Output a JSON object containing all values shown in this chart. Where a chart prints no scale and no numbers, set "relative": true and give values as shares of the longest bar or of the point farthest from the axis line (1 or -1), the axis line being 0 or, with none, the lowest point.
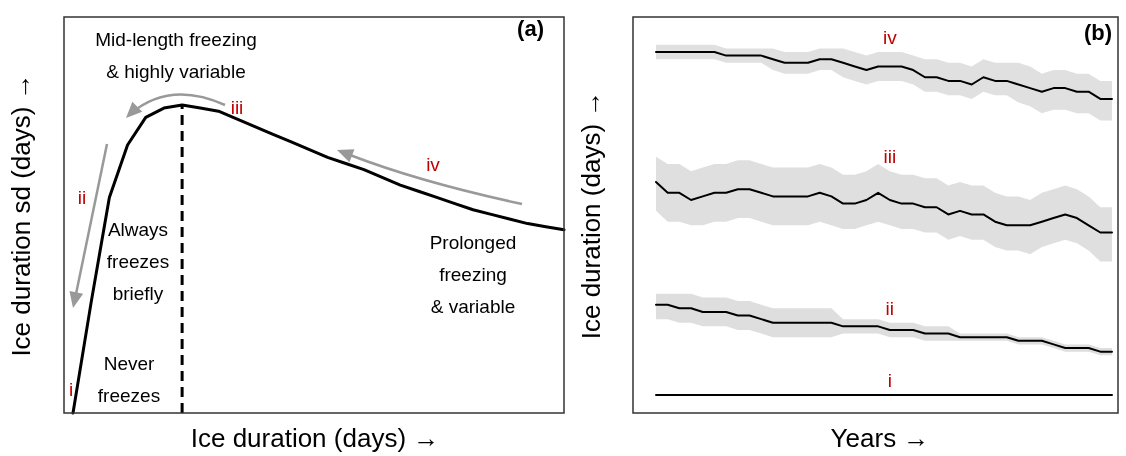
{
  "chart_data": [
    {
      "type": "line",
      "relative": true,
      "xlabel": "Ice duration (days) →",
      "ylabel": "Ice duration sd (days) →",
      "categories": [
        null,
        null,
        null,
        null,
        null,
        null,
        null,
        null,
        null,
        null,
        null,
        null,
        null,
        null,
        null,
        null,
        null,
        null,
        null,
        null,
        null,
        null,
        null,
        null,
        null,
        null,
        null,
        null
      ],
      "series": [
        {
          "color": "#000000",
          "values": [
            0,
            0.36,
            0.7,
            0.87,
            0.96,
            0.99,
            1.0,
            0.99,
            0.98,
            0.955,
            0.93,
            0.905,
            0.88,
            0.855,
            0.83,
            0.81,
            0.79,
            0.765,
            0.74,
            0.72,
            0.7,
            0.68,
            0.66,
            0.645,
            0.63,
            0.615,
            0.605,
            0.595
          ]
        }
      ],
      "annotations": [
        "(a)",
        "Mid-length freezing\n& highly variable",
        "Always\nfreezes\nbriefly",
        "Never\nfreezes",
        "Prolonged\nfreezing\n& variable",
        "i",
        "ii",
        "iii",
        "iv"
      ]
    },
    {
      "type": "line",
      "relative": true,
      "xlabel": "Years →",
      "ylabel": "Ice duration (days) →",
      "categories": [
        null,
        null,
        null,
        null,
        null,
        null,
        null,
        null,
        null,
        null,
        null,
        null,
        null,
        null,
        null,
        null,
        null,
        null,
        null,
        null,
        null,
        null,
        null,
        null,
        null,
        null,
        null,
        null,
        null,
        null,
        null,
        null,
        null,
        null,
        null,
        null,
        null,
        null,
        null,
        null
      ],
      "series": [
        {
          "name": "iv",
          "color": "#000000",
          "values": [
            1.0,
            1.0,
            1.0,
            1.0,
            1.0,
            1.0,
            0.99,
            0.99,
            0.99,
            0.99,
            0.98,
            0.97,
            0.97,
            0.97,
            0.98,
            0.98,
            0.97,
            0.96,
            0.95,
            0.96,
            0.96,
            0.96,
            0.95,
            0.93,
            0.93,
            0.92,
            0.92,
            0.91,
            0.93,
            0.92,
            0.92,
            0.91,
            0.9,
            0.89,
            0.9,
            0.9,
            0.89,
            0.89,
            0.87,
            0.87
          ],
          "upper": [
            1.02,
            1.02,
            1.02,
            1.02,
            1.02,
            1.02,
            1.01,
            1.01,
            1.01,
            1.01,
            1.01,
            1.0,
            1.0,
            1.0,
            1.01,
            1.01,
            1.01,
            1.0,
            0.99,
            1.0,
            1.0,
            1.0,
            0.99,
            0.98,
            0.98,
            0.97,
            0.97,
            0.96,
            0.98,
            0.97,
            0.97,
            0.97,
            0.96,
            0.94,
            0.95,
            0.95,
            0.94,
            0.94,
            0.92,
            0.92
          ],
          "lower": [
            0.98,
            0.98,
            0.98,
            0.98,
            0.98,
            0.98,
            0.97,
            0.97,
            0.97,
            0.97,
            0.95,
            0.94,
            0.94,
            0.94,
            0.95,
            0.95,
            0.93,
            0.92,
            0.91,
            0.92,
            0.92,
            0.92,
            0.91,
            0.89,
            0.89,
            0.88,
            0.88,
            0.87,
            0.89,
            0.88,
            0.88,
            0.86,
            0.85,
            0.83,
            0.84,
            0.84,
            0.83,
            0.83,
            0.81,
            0.81
          ]
        },
        {
          "name": "iii",
          "color": "#000000",
          "values": [
            0.64,
            0.61,
            0.61,
            0.59,
            0.6,
            0.61,
            0.61,
            0.62,
            0.62,
            0.61,
            0.6,
            0.6,
            0.6,
            0.6,
            0.61,
            0.6,
            0.58,
            0.58,
            0.59,
            0.61,
            0.59,
            0.58,
            0.58,
            0.57,
            0.57,
            0.55,
            0.56,
            0.55,
            0.55,
            0.53,
            0.52,
            0.52,
            0.52,
            0.53,
            0.54,
            0.55,
            0.54,
            0.52,
            0.5,
            0.5
          ],
          "upper": [
            0.71,
            0.69,
            0.69,
            0.67,
            0.68,
            0.69,
            0.69,
            0.7,
            0.7,
            0.69,
            0.68,
            0.68,
            0.68,
            0.68,
            0.69,
            0.68,
            0.66,
            0.66,
            0.67,
            0.69,
            0.67,
            0.66,
            0.66,
            0.65,
            0.65,
            0.63,
            0.64,
            0.63,
            0.63,
            0.61,
            0.6,
            0.6,
            0.59,
            0.61,
            0.62,
            0.63,
            0.62,
            0.6,
            0.57,
            0.57
          ],
          "lower": [
            0.56,
            0.53,
            0.53,
            0.52,
            0.52,
            0.53,
            0.53,
            0.54,
            0.54,
            0.53,
            0.52,
            0.52,
            0.52,
            0.52,
            0.53,
            0.52,
            0.51,
            0.51,
            0.52,
            0.53,
            0.52,
            0.51,
            0.51,
            0.5,
            0.5,
            0.48,
            0.49,
            0.48,
            0.48,
            0.46,
            0.45,
            0.45,
            0.44,
            0.46,
            0.47,
            0.48,
            0.47,
            0.45,
            0.42,
            0.42
          ]
        },
        {
          "name": "ii",
          "color": "#000000",
          "values": [
            0.3,
            0.3,
            0.29,
            0.29,
            0.28,
            0.28,
            0.28,
            0.27,
            0.27,
            0.26,
            0.25,
            0.25,
            0.25,
            0.25,
            0.25,
            0.25,
            0.24,
            0.24,
            0.24,
            0.24,
            0.23,
            0.23,
            0.23,
            0.22,
            0.22,
            0.22,
            0.21,
            0.21,
            0.21,
            0.21,
            0.21,
            0.2,
            0.2,
            0.2,
            0.19,
            0.18,
            0.18,
            0.18,
            0.17,
            0.17
          ],
          "upper": [
            0.33,
            0.33,
            0.33,
            0.33,
            0.32,
            0.32,
            0.32,
            0.31,
            0.31,
            0.3,
            0.29,
            0.29,
            0.29,
            0.29,
            0.29,
            0.29,
            0.26,
            0.26,
            0.26,
            0.26,
            0.25,
            0.25,
            0.25,
            0.24,
            0.24,
            0.24,
            0.22,
            0.22,
            0.22,
            0.22,
            0.22,
            0.21,
            0.21,
            0.21,
            0.2,
            0.19,
            0.19,
            0.19,
            0.18,
            0.18
          ],
          "lower": [
            0.26,
            0.26,
            0.25,
            0.25,
            0.24,
            0.24,
            0.24,
            0.23,
            0.23,
            0.22,
            0.21,
            0.21,
            0.21,
            0.21,
            0.21,
            0.21,
            0.22,
            0.22,
            0.22,
            0.22,
            0.21,
            0.21,
            0.21,
            0.2,
            0.2,
            0.2,
            0.2,
            0.2,
            0.2,
            0.2,
            0.2,
            0.19,
            0.19,
            0.19,
            0.18,
            0.17,
            0.17,
            0.17,
            0.16,
            0.16
          ]
        },
        {
          "name": "i",
          "color": "#000000",
          "values": [
            0.05,
            0.05,
            0.05,
            0.05,
            0.05,
            0.05,
            0.05,
            0.05,
            0.05,
            0.05,
            0.05,
            0.05,
            0.05,
            0.05,
            0.05,
            0.05,
            0.05,
            0.05,
            0.05,
            0.05,
            0.05,
            0.05,
            0.05,
            0.05,
            0.05,
            0.05,
            0.05,
            0.05,
            0.05,
            0.05,
            0.05,
            0.05,
            0.05,
            0.05,
            0.05,
            0.05,
            0.05,
            0.05,
            0.05,
            0.05
          ]
        }
      ],
      "annotations": [
        "(b)"
      ]
    }
  ]
}
